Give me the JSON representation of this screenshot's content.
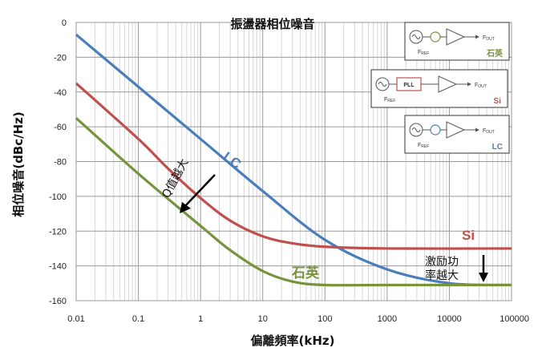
{
  "chart_data": {
    "type": "line",
    "title": "振盪器相位噪音",
    "xlabel": "偏離頻率(kHz)",
    "ylabel": "相位噪音(dBc/Hz)",
    "xscale": "log",
    "xlim": [
      0.01,
      100000
    ],
    "ylim": [
      -160,
      0
    ],
    "x_ticks": [
      "0.01",
      "0.1",
      "1",
      "10",
      "100",
      "1000",
      "10000",
      "100000"
    ],
    "y_ticks": [
      "0",
      "-20",
      "-40",
      "-60",
      "-80",
      "-100",
      "-120",
      "-140",
      "-160"
    ],
    "grid": true,
    "series": [
      {
        "name": "LC",
        "color": "#4a7ebb",
        "points": [
          [
            0.01,
            -7
          ],
          [
            0.1,
            -37
          ],
          [
            1,
            -67
          ],
          [
            10,
            -97
          ],
          [
            100,
            -125
          ],
          [
            1000,
            -142
          ],
          [
            10000,
            -150
          ],
          [
            100000,
            -151
          ]
        ]
      },
      {
        "name": "Si",
        "color": "#c0504d",
        "points": [
          [
            0.01,
            -35
          ],
          [
            0.1,
            -67
          ],
          [
            0.3,
            -84
          ],
          [
            1,
            -101
          ],
          [
            3,
            -114
          ],
          [
            10,
            -123
          ],
          [
            30,
            -127
          ],
          [
            100,
            -129
          ],
          [
            1000,
            -130
          ],
          [
            100000,
            -130
          ]
        ]
      },
      {
        "name": "石英",
        "color": "#77933c",
        "points": [
          [
            0.01,
            -55
          ],
          [
            0.1,
            -87
          ],
          [
            1,
            -117
          ],
          [
            3,
            -131
          ],
          [
            10,
            -143
          ],
          [
            30,
            -149
          ],
          [
            100,
            -151
          ],
          [
            1000,
            -151
          ],
          [
            100000,
            -151
          ]
        ]
      }
    ],
    "annotations": [
      {
        "text": "Q值越大"
      },
      {
        "text": "激励功"
      },
      {
        "text": "率越大"
      }
    ],
    "insets": [
      {
        "label": "石英",
        "block": "",
        "fref": "F",
        "fref_sub": "REF",
        "fout": "F",
        "fout_sub": "OUT",
        "color": "#77933c"
      },
      {
        "label": "Si",
        "block": "PLL",
        "fref": "F",
        "fref_sub": "REF",
        "fout": "F",
        "fout_sub": "OUT",
        "color": "#c0504d"
      },
      {
        "label": "LC",
        "block": "",
        "fref": "F",
        "fref_sub": "REF",
        "fout": "F",
        "fout_sub": "OUT",
        "color": "#4a7ebb"
      }
    ]
  }
}
